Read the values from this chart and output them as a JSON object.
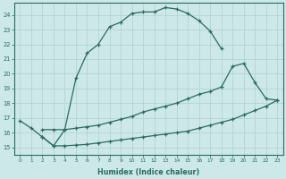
{
  "xlabel": "Humidex (Indice chaleur)",
  "background_color": "#cce8e8",
  "grid_color": "#b0d0cc",
  "line_color": "#2a6b62",
  "xlim": [
    -0.5,
    23.5
  ],
  "ylim": [
    14.5,
    24.8
  ],
  "yticks": [
    15,
    16,
    17,
    18,
    19,
    20,
    21,
    22,
    23,
    24
  ],
  "xticks": [
    0,
    1,
    2,
    3,
    4,
    5,
    6,
    7,
    8,
    9,
    10,
    11,
    12,
    13,
    14,
    15,
    16,
    17,
    18,
    19,
    20,
    21,
    22,
    23
  ],
  "line1_x": [
    0,
    1,
    2,
    3,
    4,
    5,
    6,
    7,
    8,
    9,
    10,
    11,
    12,
    13,
    14,
    15,
    16,
    17,
    18
  ],
  "line1_y": [
    16.8,
    16.3,
    15.7,
    15.1,
    16.2,
    19.7,
    21.4,
    22.0,
    23.2,
    23.5,
    24.1,
    24.2,
    24.2,
    24.5,
    24.4,
    24.1,
    23.6,
    22.9,
    21.7
  ],
  "line2_x": [
    2,
    3,
    4,
    5,
    6,
    7,
    8,
    9,
    10,
    11,
    12,
    13,
    14,
    15,
    16,
    17,
    18,
    19,
    20,
    21,
    22,
    23
  ],
  "line2_y": [
    16.2,
    16.2,
    16.2,
    16.3,
    16.4,
    16.5,
    16.7,
    16.9,
    17.1,
    17.4,
    17.6,
    17.8,
    18.0,
    18.3,
    18.6,
    18.8,
    19.1,
    20.5,
    20.7,
    19.4,
    18.3,
    18.2
  ],
  "line3_x": [
    2,
    3,
    4,
    5,
    6,
    7,
    8,
    9,
    10,
    11,
    12,
    13,
    14,
    15,
    16,
    17,
    18,
    19,
    20,
    21,
    22,
    23
  ],
  "line3_y": [
    15.7,
    15.1,
    15.1,
    15.15,
    15.2,
    15.3,
    15.4,
    15.5,
    15.6,
    15.7,
    15.8,
    15.9,
    16.0,
    16.1,
    16.3,
    16.5,
    16.7,
    16.9,
    17.2,
    17.5,
    17.8,
    18.2
  ]
}
